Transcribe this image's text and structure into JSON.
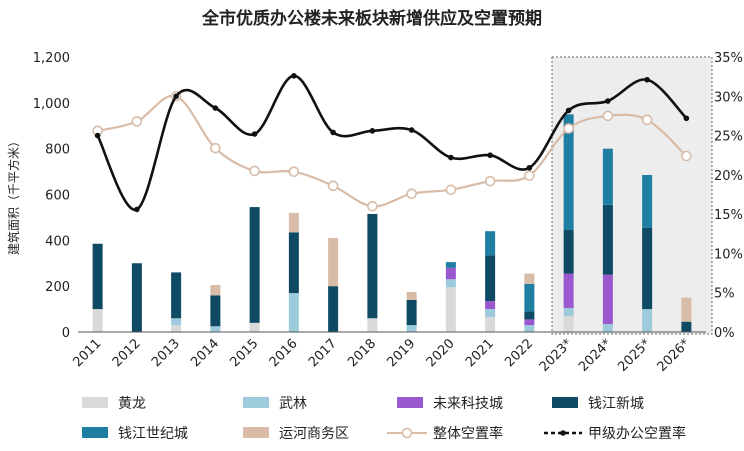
{
  "chart_data": {
    "type": "bar+line",
    "title": "全市优质办公楼未来板块新增供应及空置预期",
    "ylabel": "建筑面积（千平方米）",
    "ylim": [
      0,
      1200
    ],
    "yticks": [
      "0",
      "200",
      "400",
      "600",
      "800",
      "1,000",
      "1,200"
    ],
    "y2lim": [
      0,
      35
    ],
    "y2ticks": [
      "0%",
      "5%",
      "10%",
      "15%",
      "20%",
      "25%",
      "30%",
      "35%"
    ],
    "categories": [
      "2011",
      "2012",
      "2013",
      "2014",
      "2015",
      "2016",
      "2017",
      "2018",
      "2019",
      "2020",
      "2021",
      "2022",
      "2023*",
      "2024*",
      "2025*",
      "2026*"
    ],
    "forecast_range": [
      "2023*",
      "2026*"
    ],
    "bar_series": [
      {
        "name": "黄龙",
        "color": "#d9d9d9",
        "values": [
          100,
          0,
          30,
          0,
          40,
          0,
          0,
          60,
          0,
          195,
          65,
          0,
          70,
          0,
          0,
          0
        ]
      },
      {
        "name": "武林",
        "color": "#9dcbdc",
        "values": [
          0,
          0,
          30,
          25,
          0,
          170,
          0,
          0,
          30,
          35,
          35,
          30,
          35,
          35,
          100,
          0
        ]
      },
      {
        "name": "未来科技城",
        "color": "#9b59d0",
        "values": [
          0,
          0,
          0,
          0,
          0,
          0,
          0,
          0,
          0,
          50,
          35,
          25,
          150,
          215,
          0,
          0
        ]
      },
      {
        "name": "钱江新城",
        "color": "#0e4a63",
        "values": [
          285,
          300,
          200,
          135,
          505,
          265,
          200,
          455,
          110,
          0,
          200,
          35,
          190,
          305,
          355,
          45
        ]
      },
      {
        "name": "钱江世纪城",
        "color": "#1f7fa3",
        "values": [
          0,
          0,
          0,
          0,
          0,
          0,
          0,
          0,
          0,
          25,
          105,
          120,
          505,
          245,
          230,
          0
        ]
      },
      {
        "name": "运河商务区",
        "color": "#d8bca8",
        "values": [
          0,
          0,
          0,
          45,
          0,
          85,
          210,
          0,
          35,
          0,
          0,
          45,
          0,
          0,
          0,
          105
        ]
      }
    ],
    "line_series": [
      {
        "name": "整体空置率",
        "color": "#d8bca8",
        "axis": "right",
        "values": [
          25.6,
          26.8,
          30.0,
          23.4,
          20.5,
          20.4,
          18.6,
          16.0,
          17.6,
          18.1,
          19.2,
          19.9,
          25.9,
          27.5,
          27.0,
          22.4
        ]
      },
      {
        "name": "甲级办公空置率",
        "color": "#111111",
        "axis": "right",
        "values": [
          25.0,
          15.6,
          30.0,
          28.5,
          25.2,
          32.6,
          25.4,
          25.6,
          25.7,
          22.2,
          22.5,
          20.9,
          28.2,
          29.4,
          32.1,
          27.2
        ]
      }
    ],
    "legend_position": "bottom",
    "grid": false
  }
}
